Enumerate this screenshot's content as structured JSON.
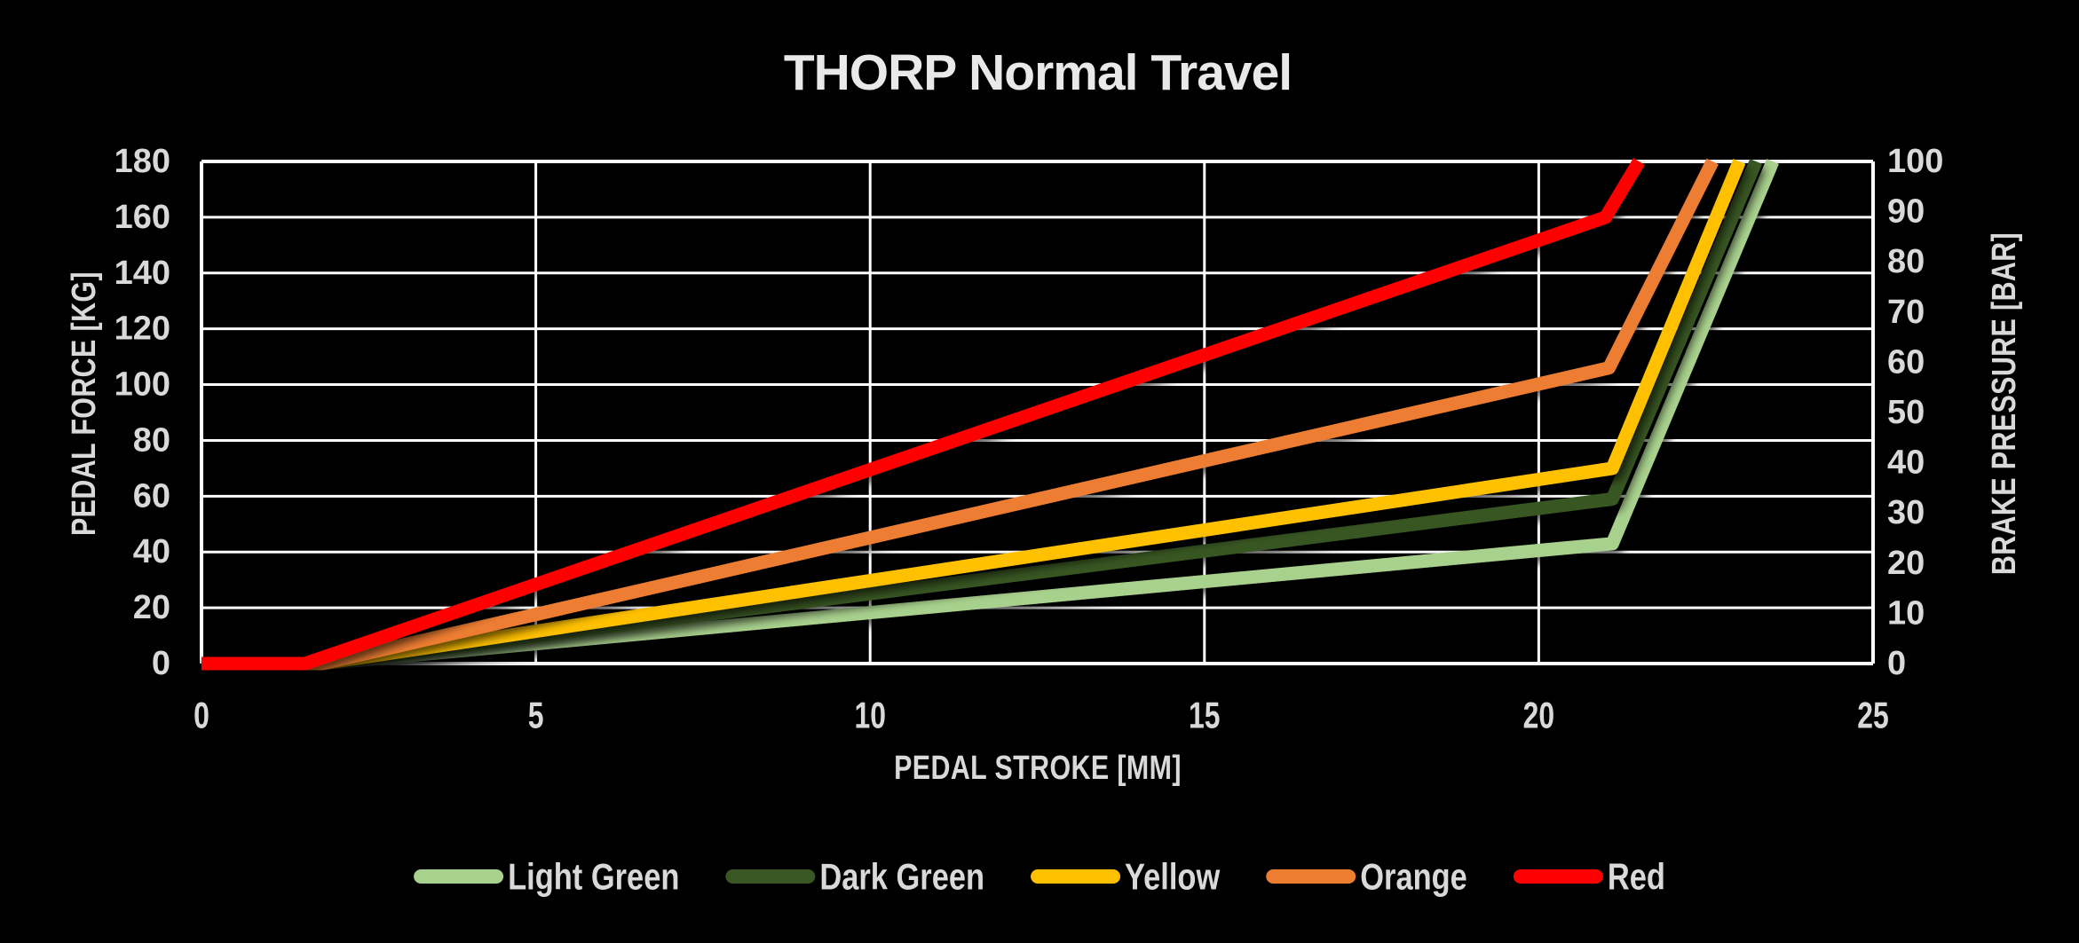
{
  "colors": {
    "background": "#000000",
    "gridline": "#FFFFFF",
    "tick_text": "#D9D9D9",
    "title_text": "#E9E9E9"
  },
  "chart_data": {
    "type": "line",
    "title": "THORP Normal Travel",
    "xlabel": "PEDAL STROKE [MM]",
    "ylabel_left": "PEDAL FORCE [KG]",
    "ylabel_right": "BRAKE PRESSURE [BAR]",
    "xlim": [
      0,
      25
    ],
    "ylim_left": [
      0,
      180
    ],
    "ylim_right": [
      0,
      100
    ],
    "x_ticks": [
      0,
      5,
      10,
      15,
      20,
      25
    ],
    "y_ticks_left": [
      0,
      20,
      40,
      60,
      80,
      100,
      120,
      140,
      160,
      180
    ],
    "y_ticks_right": [
      0,
      10,
      20,
      30,
      40,
      50,
      60,
      70,
      80,
      90,
      100
    ],
    "grid": true,
    "legend_position": "bottom",
    "series": [
      {
        "name": "Light Green",
        "color": "#A9D18E",
        "points": [
          [
            0,
            0
          ],
          [
            1.8,
            0
          ],
          [
            21.1,
            43
          ],
          [
            23.5,
            180
          ]
        ]
      },
      {
        "name": "Dark Green",
        "color": "#385723",
        "points": [
          [
            0,
            0
          ],
          [
            1.8,
            0
          ],
          [
            21.1,
            59
          ],
          [
            23.25,
            180
          ]
        ]
      },
      {
        "name": "Yellow",
        "color": "#FFC000",
        "points": [
          [
            0,
            0
          ],
          [
            1.8,
            0
          ],
          [
            21.1,
            70
          ],
          [
            23.0,
            180
          ]
        ]
      },
      {
        "name": "Orange",
        "color": "#ED7D31",
        "points": [
          [
            0,
            0
          ],
          [
            1.8,
            0
          ],
          [
            21.05,
            106
          ],
          [
            22.6,
            180
          ]
        ]
      },
      {
        "name": "Red",
        "color": "#FF0000",
        "points": [
          [
            0,
            0
          ],
          [
            1.55,
            0
          ],
          [
            21.0,
            160
          ],
          [
            21.5,
            180
          ]
        ]
      }
    ]
  }
}
